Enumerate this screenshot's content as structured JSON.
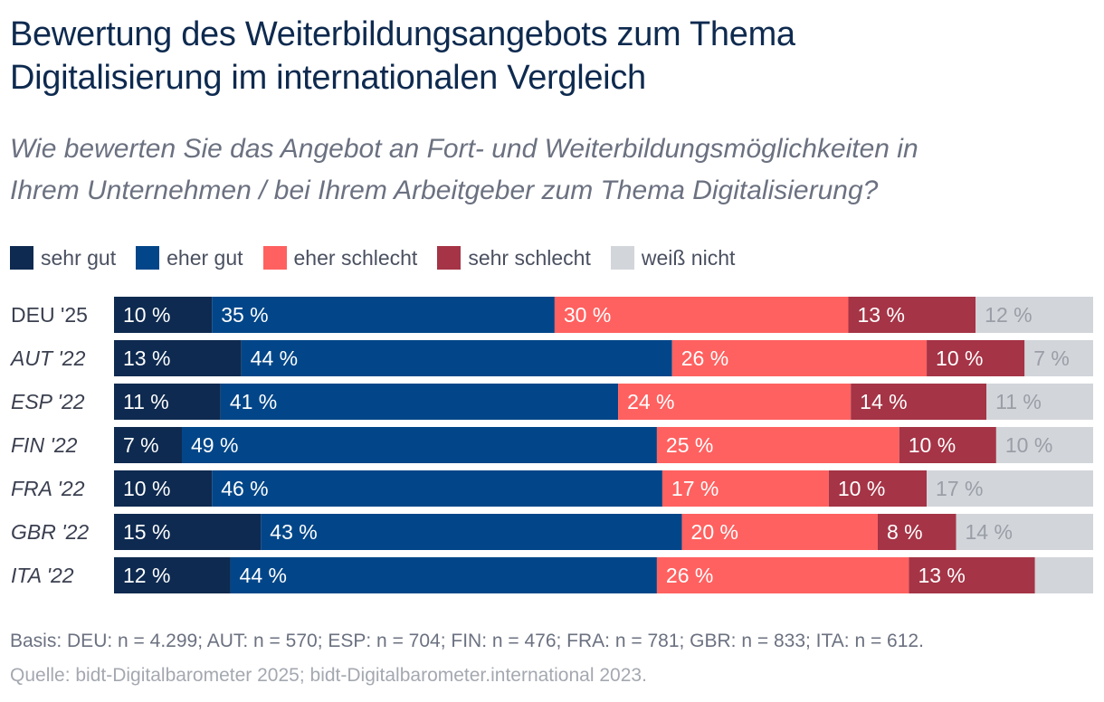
{
  "title_line1": "Bewertung des Weiterbildungsangebots zum Thema",
  "title_line2": "Digitalisierung im internationalen Vergleich",
  "subtitle_line1": "Wie bewerten Sie das Angebot an Fort- und Weiterbildungsmöglichkeiten in",
  "subtitle_line2": "Ihrem Unternehmen / bei Ihrem Arbeitgeber zum Thema Digitalisierung?",
  "legend": [
    {
      "label": "sehr gut",
      "color": "#0e2a50"
    },
    {
      "label": "eher gut",
      "color": "#024689"
    },
    {
      "label": "eher schlecht",
      "color": "#ff6160"
    },
    {
      "label": "sehr schlecht",
      "color": "#a53446"
    },
    {
      "label": "weiß nicht",
      "color": "#d2d5da"
    }
  ],
  "footer_basis": "Basis: DEU: n = 4.299; AUT: n = 570; ESP: n = 704; FIN: n = 476; FRA: n = 781; GBR: n = 833; ITA: n = 612.",
  "footer_source": "Quelle: bidt-Digitalbarometer 2025; bidt-Digitalbarometer.international 2023.",
  "chart_data": {
    "type": "bar",
    "orientation": "horizontal",
    "stacked": true,
    "unit": "%",
    "categories": [
      "DEU '25",
      "AUT '22",
      "ESP '22",
      "FIN '22",
      "FRA '22",
      "GBR '22",
      "ITA '22"
    ],
    "category_italic": [
      false,
      true,
      true,
      true,
      true,
      true,
      true
    ],
    "series": [
      {
        "name": "sehr gut",
        "color": "#0e2a50",
        "label_color": "#ffffff",
        "values": [
          10,
          13,
          11,
          7,
          10,
          15,
          12
        ]
      },
      {
        "name": "eher gut",
        "color": "#024689",
        "label_color": "#ffffff",
        "values": [
          35,
          44,
          41,
          49,
          46,
          43,
          44
        ]
      },
      {
        "name": "eher schlecht",
        "color": "#ff6160",
        "label_color": "#ffffff",
        "values": [
          30,
          26,
          24,
          25,
          17,
          20,
          26
        ]
      },
      {
        "name": "sehr schlecht",
        "color": "#a53446",
        "label_color": "#ffffff",
        "values": [
          13,
          10,
          14,
          10,
          10,
          8,
          13
        ]
      },
      {
        "name": "weiß nicht",
        "color": "#d2d5da",
        "label_color": "#9a9ea6",
        "values": [
          12,
          7,
          11,
          10,
          17,
          14,
          6
        ]
      }
    ],
    "value_labels": [
      [
        "10 %",
        "35 %",
        "30 %",
        "13 %",
        "12 %"
      ],
      [
        "13 %",
        "44 %",
        "26 %",
        "10 %",
        "7 %"
      ],
      [
        "11 %",
        "41 %",
        "24 %",
        "14 %",
        "11 %"
      ],
      [
        "7 %",
        "49 %",
        "25 %",
        "10 %",
        "10 %"
      ],
      [
        "10 %",
        "46 %",
        "17 %",
        "10 %",
        "17 %"
      ],
      [
        "15 %",
        "43 %",
        "20 %",
        "8 %",
        "14 %"
      ],
      [
        "12 %",
        "44 %",
        "26 %",
        "13 %",
        ""
      ]
    ],
    "xlim": [
      0,
      100
    ]
  }
}
